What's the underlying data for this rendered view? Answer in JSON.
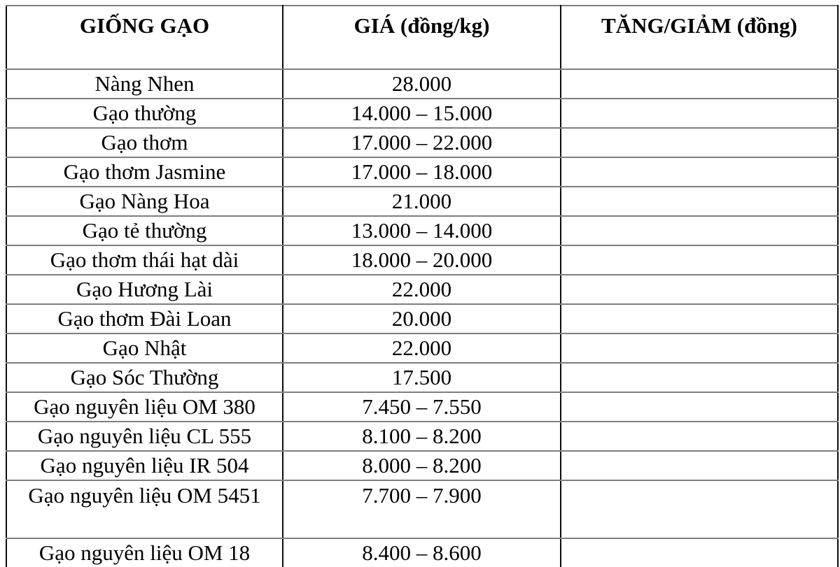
{
  "colors": {
    "background": "#ffffff",
    "text": "#000000",
    "grid_dark": "#0d0d0d",
    "grid_gray": "#7e7e7e"
  },
  "table": {
    "headers": [
      "GIỐNG GẠO",
      "GIÁ (đồng/kg)",
      "TĂNG/GIẢM (đồng)"
    ],
    "rows": [
      {
        "variety": "Nàng Nhen",
        "price": "28.000",
        "change": ""
      },
      {
        "variety": "Gạo thường",
        "price": "14.000 – 15.000",
        "change": ""
      },
      {
        "variety": "Gạo thơm",
        "price": "17.000 – 22.000",
        "change": ""
      },
      {
        "variety": "Gạo thơm Jasmine",
        "price": "17.000 – 18.000",
        "change": ""
      },
      {
        "variety": "Gạo Nàng Hoa",
        "price": "21.000",
        "change": ""
      },
      {
        "variety": "Gạo tẻ thường",
        "price": "13.000 – 14.000",
        "change": ""
      },
      {
        "variety": "Gạo thơm thái hạt dài",
        "price": "18.000 – 20.000",
        "change": ""
      },
      {
        "variety": "Gạo Hương Lài",
        "price": "22.000",
        "change": ""
      },
      {
        "variety": "Gạo thơm Đài Loan",
        "price": "20.000",
        "change": ""
      },
      {
        "variety": "Gạo Nhật",
        "price": "22.000",
        "change": ""
      },
      {
        "variety": "Gạo Sóc Thường",
        "price": "17.500",
        "change": ""
      },
      {
        "variety": "Gạo nguyên liệu OM 380",
        "price": "7.450 – 7.550",
        "change": ""
      },
      {
        "variety": "Gạo nguyên liệu CL 555",
        "price": "8.100 – 8.200",
        "change": ""
      },
      {
        "variety": "Gạo nguyên liệu IR 504",
        "price": "8.000 – 8.200",
        "change": ""
      },
      {
        "variety": "Gạo nguyên liệu OM 5451",
        "price": "7.700 – 7.900",
        "change": "",
        "tall": true
      },
      {
        "variety": "Gạo nguyên liệu OM 18",
        "price": "8.400 – 8.600",
        "change": ""
      }
    ]
  }
}
